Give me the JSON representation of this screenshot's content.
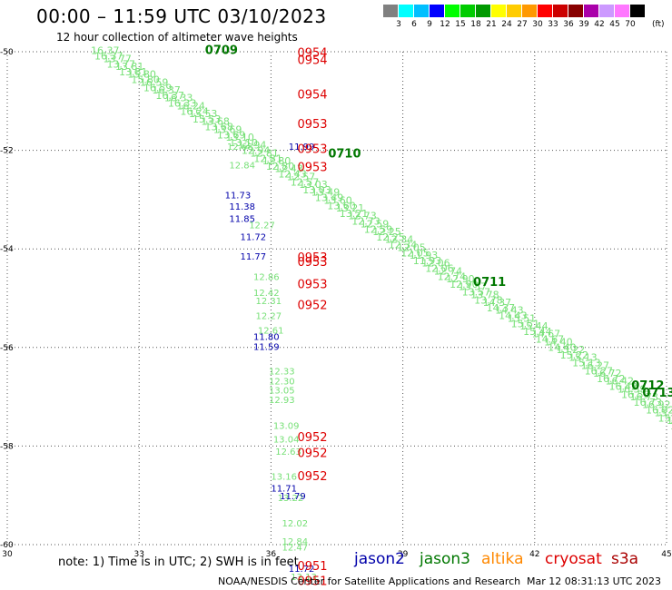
{
  "title": "00:00 – 11:59 UTC 03/10/2023",
  "subtitle": "12 hour collection of altimeter wave heights",
  "colorbar": {
    "colors": [
      "#808080",
      "#00ffff",
      "#00bfff",
      "#0000ff",
      "#00ff00",
      "#00cc00",
      "#009900",
      "#ffff00",
      "#ffcc00",
      "#ff9900",
      "#ff0000",
      "#cc0000",
      "#880000",
      "#aa00aa",
      "#cc99ff",
      "#ff77ff",
      "#000000"
    ],
    "labels": [
      "3",
      "6",
      "9",
      "12",
      "15",
      "18",
      "21",
      "24",
      "27",
      "30",
      "33",
      "36",
      "39",
      "42",
      "45",
      "70"
    ],
    "unit": "(ft)"
  },
  "axes": {
    "x_ticks": [
      "30",
      "33",
      "36",
      "39",
      "42",
      "45"
    ],
    "y_ticks": [
      "-50",
      "-52",
      "-54",
      "-56",
      "-58",
      "-60"
    ]
  },
  "colors": {
    "jason2": "#0000aa",
    "jason3": "#007700",
    "altika": "#ff8800",
    "cryosat": "#dd0000",
    "s3a": "#aa0000",
    "swh_light": "#77e077",
    "swh_blue": "#0000aa",
    "grid": "#555555"
  },
  "diag_track": {
    "values": [
      "16.37",
      "13.77",
      "13.81",
      "15.80",
      "16.59",
      "16.37",
      "16.33",
      "16.24",
      "15.53",
      "13.68",
      "13.69",
      "13.10",
      "12.94",
      "12.81",
      "12.80",
      "12.43",
      "12.57",
      "13.03",
      "13.49",
      "13.60",
      "13.21",
      "12.73",
      "12.59",
      "12.25",
      "12.34",
      "12.05",
      "11.93",
      "12.06",
      "12.74",
      "12.90",
      "13.57",
      "13.78",
      "14.37",
      "14.43",
      "15.51",
      "15.44",
      "14.67",
      "14.40",
      "15.22",
      "15.13",
      "16.27",
      "16.72",
      "16.42",
      "16.59",
      "16.73",
      "16.92",
      "15.34",
      "15.01"
    ]
  },
  "vert_track_light": [
    {
      "value": "12.68",
      "lon": 35.0,
      "lat": -51.99
    },
    {
      "value": "12.84",
      "lon": 35.05,
      "lat": -52.37
    },
    {
      "value": "12.27",
      "lon": 35.5,
      "lat": -53.58
    },
    {
      "value": "12.86",
      "lon": 35.6,
      "lat": -54.63
    },
    {
      "value": "12.42",
      "lon": 35.6,
      "lat": -54.95
    },
    {
      "value": "12.31",
      "lon": 35.65,
      "lat": -55.12
    },
    {
      "value": "12.27",
      "lon": 35.65,
      "lat": -55.42
    },
    {
      "value": "12.61",
      "lon": 35.7,
      "lat": -55.72
    },
    {
      "value": "12.33",
      "lon": 35.95,
      "lat": -56.55
    },
    {
      "value": "12.30",
      "lon": 35.95,
      "lat": -56.75
    },
    {
      "value": "13.05",
      "lon": 35.95,
      "lat": -56.93
    },
    {
      "value": "12.93",
      "lon": 35.95,
      "lat": -57.13
    },
    {
      "value": "13.09",
      "lon": 36.05,
      "lat": -57.65
    },
    {
      "value": "13.04",
      "lon": 36.05,
      "lat": -57.93
    },
    {
      "value": "12.63",
      "lon": 36.1,
      "lat": -58.18
    },
    {
      "value": "13.16",
      "lon": 36.0,
      "lat": -58.68
    },
    {
      "value": "13.22",
      "lon": 36.15,
      "lat": -59.12
    },
    {
      "value": "12.02",
      "lon": 36.25,
      "lat": -59.63
    },
    {
      "value": "12.84",
      "lon": 36.25,
      "lat": -60.0
    },
    {
      "value": "12.47",
      "lon": 36.25,
      "lat": -60.12
    },
    {
      "value": "13.13",
      "lon": 36.45,
      "lat": -60.72
    }
  ],
  "vert_track_blue": [
    {
      "value": "11.99",
      "lon": 36.4,
      "lat": -51.99
    },
    {
      "value": "11.73",
      "lon": 34.95,
      "lat": -52.97
    },
    {
      "value": "11.38",
      "lon": 35.05,
      "lat": -53.2
    },
    {
      "value": "11.85",
      "lon": 35.05,
      "lat": -53.45
    },
    {
      "value": "11.72",
      "lon": 35.3,
      "lat": -53.82
    },
    {
      "value": "11.77",
      "lon": 35.3,
      "lat": -54.22
    },
    {
      "value": "11.80",
      "lon": 35.6,
      "lat": -55.85
    },
    {
      "value": "11.59",
      "lon": 35.6,
      "lat": -56.05
    },
    {
      "value": "11.71",
      "lon": 36.0,
      "lat": -58.92
    },
    {
      "value": "11.79",
      "lon": 36.2,
      "lat": -59.08
    },
    {
      "value": "11.72",
      "lon": 36.4,
      "lat": -60.55
    }
  ],
  "time_labels_red": [
    {
      "value": "0954",
      "lon": 36.6,
      "lat": -50.1
    },
    {
      "value": "0954",
      "lon": 36.6,
      "lat": -50.25
    },
    {
      "value": "0954",
      "lon": 36.6,
      "lat": -50.95
    },
    {
      "value": "0953",
      "lon": 36.6,
      "lat": -51.55
    },
    {
      "value": "0953",
      "lon": 36.6,
      "lat": -52.05
    },
    {
      "value": "0953",
      "lon": 36.6,
      "lat": -52.42
    },
    {
      "value": "0953",
      "lon": 36.6,
      "lat": -54.25
    },
    {
      "value": "0953",
      "lon": 36.6,
      "lat": -54.35
    },
    {
      "value": "0953",
      "lon": 36.6,
      "lat": -54.8
    },
    {
      "value": "0952",
      "lon": 36.6,
      "lat": -55.22
    },
    {
      "value": "0952",
      "lon": 36.6,
      "lat": -57.9
    },
    {
      "value": "0952",
      "lon": 36.6,
      "lat": -58.22
    },
    {
      "value": "0952",
      "lon": 36.6,
      "lat": -58.69
    },
    {
      "value": "0951",
      "lon": 36.6,
      "lat": -60.52
    },
    {
      "value": "0951",
      "lon": 36.6,
      "lat": -60.82
    }
  ],
  "time_labels_green": [
    {
      "value": "0709",
      "lon": 34.5,
      "lat": -50.05
    },
    {
      "value": "0710",
      "lon": 37.3,
      "lat": -52.15
    },
    {
      "value": "0711",
      "lon": 40.6,
      "lat": -54.75
    },
    {
      "value": "0712",
      "lon": 44.2,
      "lat": -56.85
    },
    {
      "value": "0713",
      "lon": 44.45,
      "lat": -57.0
    }
  ],
  "note": "note: 1) Time is in UTC; 2) SWH is in feet",
  "legend": {
    "jason2": "jason2",
    "jason3": "jason3",
    "altika": "altika",
    "cryosat": "cryosat",
    "s3a": "s3a"
  },
  "credit": "NOAA/NESDIS Center for Satellite Applications and Research",
  "timestamp": "Mar 12 08:31:13 UTC 2023"
}
